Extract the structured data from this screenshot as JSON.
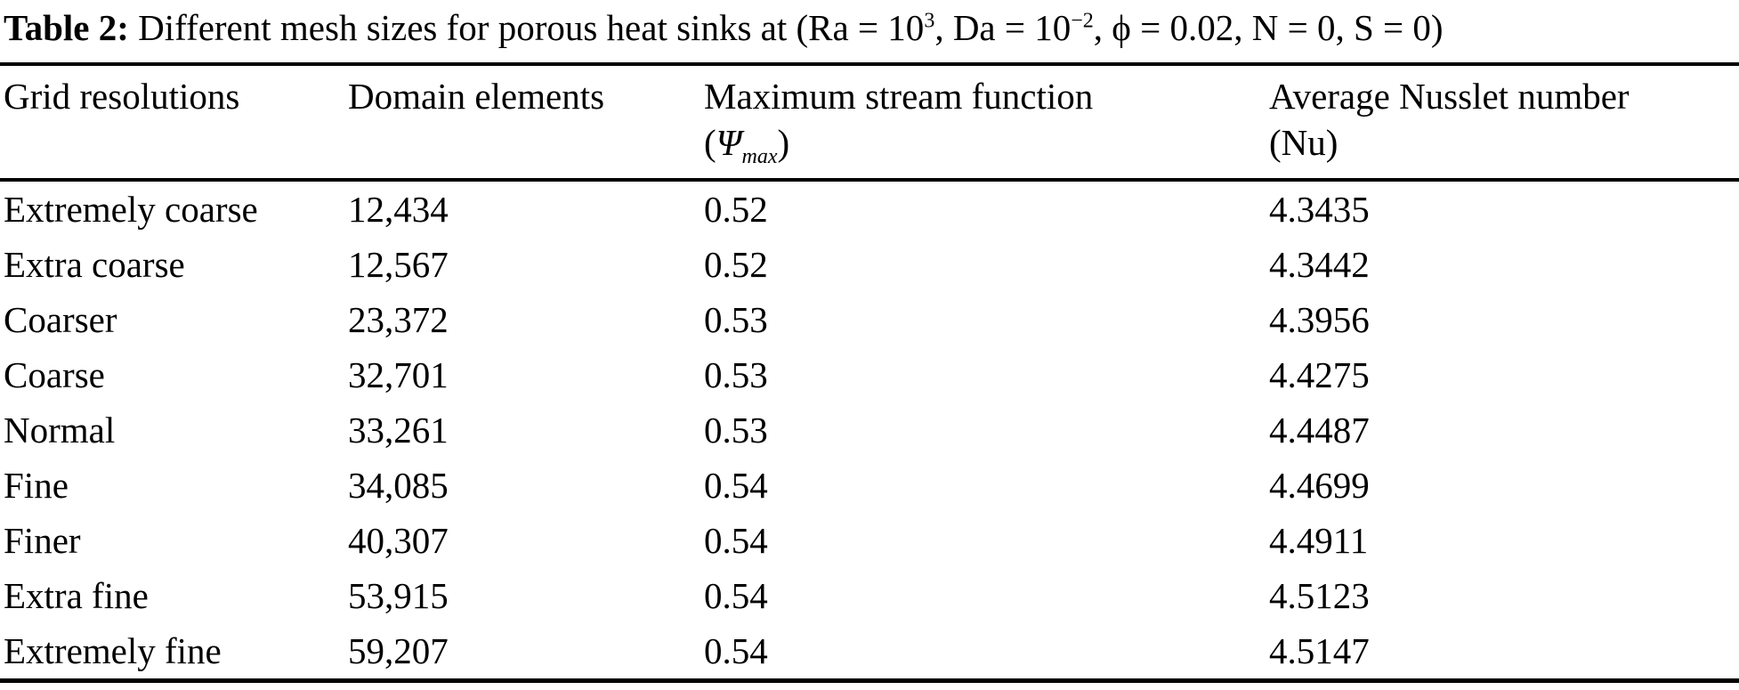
{
  "caption": {
    "label": "Table 2:",
    "seg1": " Different mesh sizes for porous heat sinks at (Ra = 10",
    "sup1": "3",
    "seg2": ", Da = 10",
    "sup2": "−2",
    "seg3": ", ϕ = 0.02, N = 0, S = 0)"
  },
  "table": {
    "columns": [
      {
        "line1": "Grid resolutions",
        "line2": ""
      },
      {
        "line1": "Domain elements",
        "line2": ""
      },
      {
        "line1": "Maximum stream function",
        "line2_open": "(",
        "line2_symbol": "Ψ",
        "line2_sub": "max",
        "line2_close": ")"
      },
      {
        "line1": "Average Nusslet number",
        "line2": "(Nu)"
      }
    ],
    "rows": [
      {
        "grid": "Extremely coarse",
        "elements": "12,434",
        "psi": "0.52",
        "nu": "4.3435"
      },
      {
        "grid": "Extra coarse",
        "elements": "12,567",
        "psi": "0.52",
        "nu": "4.3442"
      },
      {
        "grid": "Coarser",
        "elements": "23,372",
        "psi": "0.53",
        "nu": "4.3956"
      },
      {
        "grid": "Coarse",
        "elements": "32,701",
        "psi": "0.53",
        "nu": "4.4275"
      },
      {
        "grid": "Normal",
        "elements": "33,261",
        "psi": "0.53",
        "nu": "4.4487"
      },
      {
        "grid": "Fine",
        "elements": "34,085",
        "psi": "0.54",
        "nu": "4.4699"
      },
      {
        "grid": "Finer",
        "elements": "40,307",
        "psi": "0.54",
        "nu": "4.4911"
      },
      {
        "grid": "Extra fine",
        "elements": "53,915",
        "psi": "0.54",
        "nu": "4.5123"
      },
      {
        "grid": "Extremely fine",
        "elements": "59,207",
        "psi": "0.54",
        "nu": "4.5147"
      }
    ]
  }
}
